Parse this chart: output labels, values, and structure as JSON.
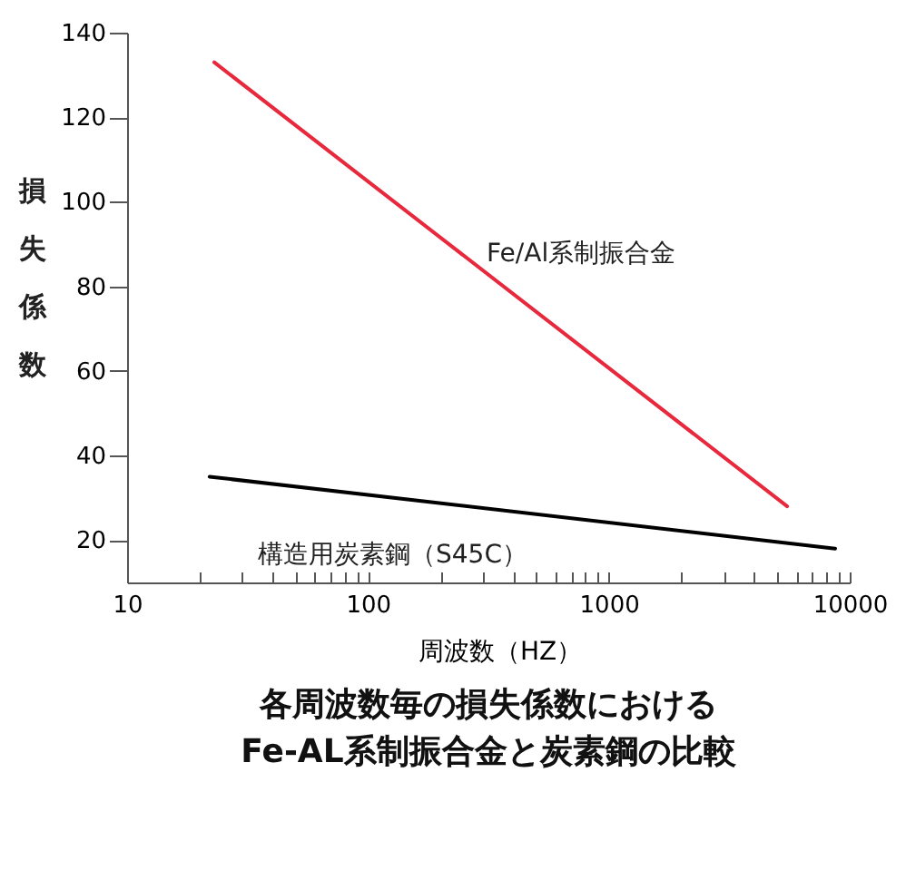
{
  "chart_data": {
    "type": "line",
    "title": "各周波数毎の損失係数における\nFe-AL系制振合金と炭素鋼の比較",
    "xlabel": "周波数（HZ）",
    "ylabel": "損失係数",
    "log": "x",
    "grid": false,
    "marker": "none",
    "line_style": "solid",
    "xlim": [
      10,
      10000
    ],
    "xticks": [
      10,
      {
        "value": 20,
        "label": null
      },
      {
        "value": 30,
        "label": null
      },
      {
        "value": 40,
        "label": null
      },
      {
        "value": 50,
        "label": null
      },
      {
        "value": 60,
        "label": null
      },
      {
        "value": 70,
        "label": null
      },
      {
        "value": 80,
        "label": null
      },
      {
        "value": 90,
        "label": null
      },
      100,
      {
        "value": 200,
        "label": null
      },
      {
        "value": 300,
        "label": null
      },
      {
        "value": 400,
        "label": null
      },
      {
        "value": 500,
        "label": null
      },
      {
        "value": 600,
        "label": null
      },
      {
        "value": 700,
        "label": null
      },
      {
        "value": 800,
        "label": null
      },
      {
        "value": 900,
        "label": null
      },
      1000,
      {
        "value": 2000,
        "label": null
      },
      {
        "value": 3000,
        "label": null
      },
      {
        "value": 4000,
        "label": null
      },
      {
        "value": 5000,
        "label": null
      },
      {
        "value": 6000,
        "label": null
      },
      {
        "value": 7000,
        "label": null
      },
      {
        "value": 8000,
        "label": null
      },
      {
        "value": 9000,
        "label": null
      },
      10000
    ],
    "ylim": [
      10,
      140
    ],
    "yticks": [
      20,
      40,
      60,
      80,
      100,
      120,
      140
    ],
    "series": [
      {
        "name": "Fe/Al系制振合金",
        "color": "#e8283c",
        "x": [
          23,
          5500
        ],
        "values": [
          133,
          28
        ]
      },
      {
        "name": "構造用炭素鋼（S45C）",
        "color": "#000000",
        "x": [
          22,
          8700
        ],
        "values": [
          35,
          18
        ]
      }
    ]
  }
}
